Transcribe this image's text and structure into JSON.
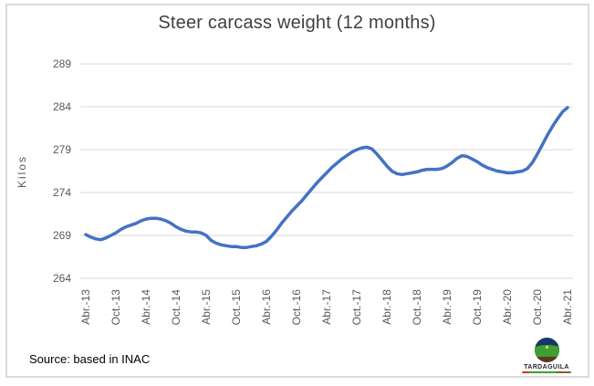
{
  "chart_data": {
    "type": "line",
    "title": "Steer carcass weight (12 months)",
    "xlabel": "",
    "ylabel": "Kilos",
    "ylim": [
      264,
      289
    ],
    "yticks": [
      264,
      269,
      274,
      279,
      284,
      289
    ],
    "grid": true,
    "legend": "none",
    "line_color": "#4472C4",
    "gridline_color": "#D9D9D9",
    "axis_text_color": "#595959",
    "x_unit": "month",
    "x_range": "Abr-2013 to Abr-2021, one point per month",
    "x_tick_labels": [
      "Abr.-13",
      "Oct.-13",
      "Abr.-14",
      "Oct.-14",
      "Abr.-15",
      "Oct.-15",
      "Abr.-16",
      "Oct.-16",
      "Abr.-17",
      "Oct.-17",
      "Abr.-18",
      "Oct.-18",
      "Abr.-19",
      "Oct.-19",
      "Abr.-20",
      "Oct.-20",
      "Abr.-21"
    ],
    "x_ticks_every_n_points": 6,
    "series": [
      {
        "name": "Steer carcass weight",
        "values": [
          269.1,
          268.8,
          268.6,
          268.5,
          268.7,
          269.0,
          269.3,
          269.7,
          270.0,
          270.2,
          270.4,
          270.7,
          270.9,
          271.0,
          271.0,
          270.9,
          270.7,
          270.4,
          270.0,
          269.7,
          269.5,
          269.4,
          269.4,
          269.3,
          269.0,
          268.4,
          268.1,
          267.9,
          267.8,
          267.7,
          267.7,
          267.6,
          267.6,
          267.7,
          267.8,
          268.0,
          268.3,
          268.9,
          269.6,
          270.4,
          271.1,
          271.8,
          272.4,
          273.0,
          273.7,
          274.4,
          275.1,
          275.7,
          276.3,
          276.9,
          277.4,
          277.9,
          278.3,
          278.7,
          279.0,
          279.2,
          279.3,
          279.1,
          278.5,
          277.8,
          277.1,
          276.5,
          276.2,
          276.1,
          276.2,
          276.3,
          276.4,
          276.6,
          276.7,
          276.7,
          276.7,
          276.8,
          277.1,
          277.5,
          278.0,
          278.3,
          278.2,
          277.9,
          277.6,
          277.2,
          276.9,
          276.7,
          276.5,
          276.4,
          276.3,
          276.3,
          276.4,
          276.5,
          276.8,
          277.5,
          278.5,
          279.6,
          280.7,
          281.7,
          282.6,
          283.4,
          283.9
        ]
      }
    ]
  },
  "footer": {
    "source_note": "Source: based in INAC",
    "logo_text": "TARDAGUILA"
  }
}
